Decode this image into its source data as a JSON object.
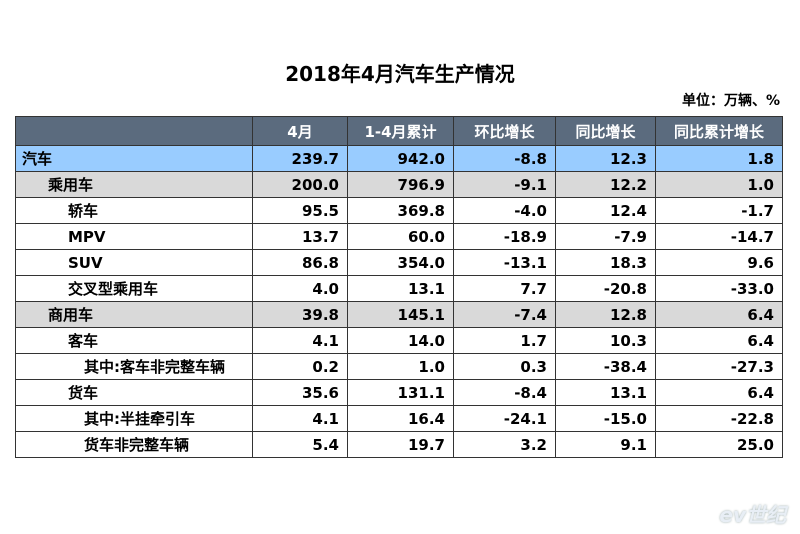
{
  "title": "2018年4月汽车生产情况",
  "unit": "单位：万辆、%",
  "table": {
    "header": [
      "4月",
      "1-4月累计",
      "环比增长",
      "同比增长",
      "同比累计增长"
    ],
    "rows": [
      {
        "label": "汽车",
        "cells": [
          "239.7",
          "942.0",
          "-8.8",
          "12.3",
          "1.8"
        ]
      },
      {
        "label": "乘用车",
        "cells": [
          "200.0",
          "796.9",
          "-9.1",
          "12.2",
          "1.0"
        ]
      },
      {
        "label": "轿车",
        "cells": [
          "95.5",
          "369.8",
          "-4.0",
          "12.4",
          "-1.7"
        ]
      },
      {
        "label": "MPV",
        "cells": [
          "13.7",
          "60.0",
          "-18.9",
          "-7.9",
          "-14.7"
        ]
      },
      {
        "label": "SUV",
        "cells": [
          "86.8",
          "354.0",
          "-13.1",
          "18.3",
          "9.6"
        ]
      },
      {
        "label": "交叉型乘用车",
        "cells": [
          "4.0",
          "13.1",
          "7.7",
          "-20.8",
          "-33.0"
        ]
      },
      {
        "label": "商用车",
        "cells": [
          "39.8",
          "145.1",
          "-7.4",
          "12.8",
          "6.4"
        ]
      },
      {
        "label": "客车",
        "cells": [
          "4.1",
          "14.0",
          "1.7",
          "10.3",
          "6.4"
        ]
      },
      {
        "label": "其中:客车非完整车辆",
        "cells": [
          "0.2",
          "1.0",
          "0.3",
          "-38.4",
          "-27.3"
        ]
      },
      {
        "label": "货车",
        "cells": [
          "35.6",
          "131.1",
          "-8.4",
          "13.1",
          "6.4"
        ]
      },
      {
        "label": "其中:半挂牵引车",
        "cells": [
          "4.1",
          "16.4",
          "-24.1",
          "-15.0",
          "-22.8"
        ]
      },
      {
        "label": "货车非完整车辆",
        "cells": [
          "5.4",
          "19.7",
          "3.2",
          "9.1",
          "25.0"
        ]
      }
    ]
  },
  "watermark": "ev世纪"
}
